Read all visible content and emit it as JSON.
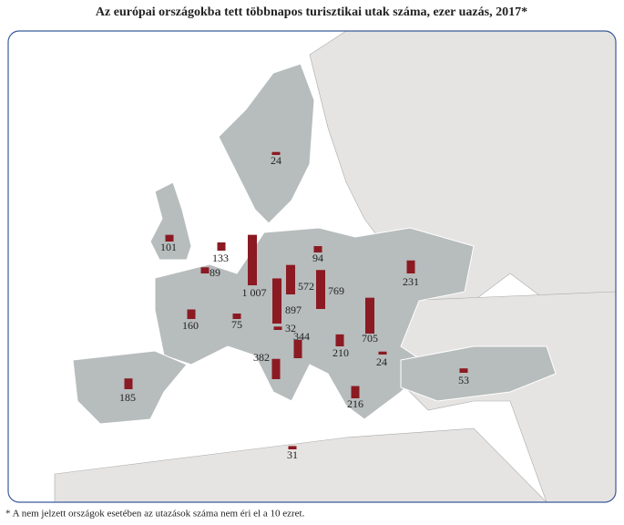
{
  "title": "Az európai országokba tett többnapos turisztikai utak száma, ezer uazás, 2017*",
  "footnote": "* A nem jelzett országok esetében az utazások száma nem éri el a 10 ezret.",
  "chart_data": {
    "type": "bar",
    "color": "#8b1a22",
    "values": [
      24,
      101,
      133,
      89,
      1007,
      94,
      572,
      769,
      231,
      160,
      75,
      897,
      32,
      344,
      705,
      210,
      24,
      382,
      185,
      53,
      216,
      31
    ],
    "value_labels": [
      "24",
      "101",
      "133",
      "89",
      "1 007",
      "94",
      "572",
      "769",
      "231",
      "160",
      "75",
      "897",
      "32",
      "344",
      "705",
      "210",
      "24",
      "382",
      "185",
      "53",
      "216",
      "31"
    ]
  }
}
